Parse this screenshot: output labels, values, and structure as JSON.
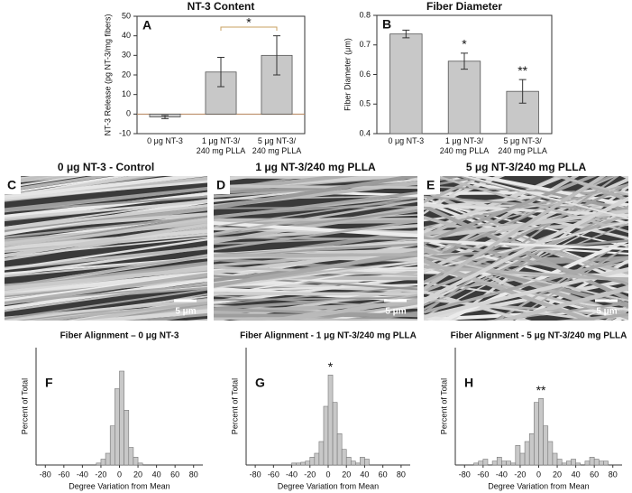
{
  "chart_data": [
    {
      "type": "bar",
      "label": "A",
      "title": "NT-3 Content",
      "y_label": "NT-3 Release (pg NT-3/mg fibers)",
      "categories": [
        "0 μg NT-3",
        "1 μg NT-3/\n240 mg PLLA",
        "5 μg NT-3/\n240 mg PLLA"
      ],
      "values": [
        -1.5,
        21.5,
        30
      ],
      "errors": [
        0.8,
        7.5,
        10
      ],
      "color": "#c8c8c8",
      "ylim": [
        -10,
        50
      ],
      "yticks": [
        -10,
        0,
        10,
        20,
        30,
        40,
        50
      ],
      "annotation": "*"
    },
    {
      "type": "bar",
      "label": "B",
      "title": "Fiber Diameter",
      "y_label": "Fiber Diameter (μm)",
      "categories": [
        "0 μg NT-3",
        "1 μg NT-3/\n240 mg PLLA",
        "5 μg NT-3/\n240 mg PLLA"
      ],
      "values": [
        0.737,
        0.645,
        0.543
      ],
      "errors": [
        0.013,
        0.027,
        0.04
      ],
      "color": "#c8c8c8",
      "ylim": [
        0.4,
        0.8
      ],
      "yticks": [
        0.4,
        0.5,
        0.6,
        0.7,
        0.8
      ],
      "annotations": [
        null,
        "*",
        "**"
      ]
    },
    {
      "type": "histogram",
      "label": "F",
      "title": "Fiber Alignment – 0 μg NT-3",
      "x_label": "Degree Variation from Mean",
      "y_label": "Percent of Total",
      "bins": [
        -90,
        -85,
        -80,
        -75,
        -70,
        -65,
        -60,
        -55,
        -50,
        -45,
        -40,
        -35,
        -30,
        -25,
        -20,
        -15,
        -10,
        -5,
        0,
        5,
        10,
        15,
        20,
        25,
        30,
        35,
        40,
        45,
        50,
        55,
        60,
        65,
        70,
        75,
        80,
        85,
        90
      ],
      "values": [
        0,
        0,
        0,
        0,
        0,
        0,
        0,
        0,
        0,
        0,
        0,
        0,
        0,
        0.5,
        1.5,
        3,
        10,
        19.5,
        24,
        14,
        4.5,
        2,
        0.5,
        0,
        0,
        0,
        0,
        0,
        0,
        0,
        0,
        0,
        0,
        0,
        0,
        0
      ],
      "color": "#c8c8c8",
      "xlim": [
        -90,
        90
      ],
      "xticks": [
        -80,
        -60,
        -40,
        -20,
        0,
        20,
        40,
        60,
        80
      ],
      "ylim": [
        0,
        30
      ]
    },
    {
      "type": "histogram",
      "label": "G",
      "title": "Fiber Alignment  - 1 μg NT-3/240 mg PLLA",
      "x_label": "Degree Variation from Mean",
      "y_label": "Percent of Total",
      "bins": [
        -90,
        -85,
        -80,
        -75,
        -70,
        -65,
        -60,
        -55,
        -50,
        -45,
        -40,
        -35,
        -30,
        -25,
        -20,
        -15,
        -10,
        -5,
        0,
        5,
        10,
        15,
        20,
        25,
        30,
        35,
        40,
        45,
        50,
        55,
        60,
        65,
        70,
        75,
        80,
        85,
        90
      ],
      "values": [
        0,
        0,
        0,
        0,
        0,
        0,
        0,
        0,
        0,
        0,
        0.5,
        0.5,
        0.7,
        1,
        2,
        3,
        6,
        15,
        23,
        16,
        8,
        4,
        2,
        1,
        0.5,
        2,
        1.5,
        0,
        0,
        0,
        0,
        0,
        0,
        0,
        0,
        0
      ],
      "color": "#c8c8c8",
      "xlim": [
        -90,
        90
      ],
      "xticks": [
        -80,
        -60,
        -40,
        -20,
        0,
        20,
        40,
        60,
        80
      ],
      "ylim": [
        0,
        30
      ],
      "annotation": "*"
    },
    {
      "type": "histogram",
      "label": "H",
      "title": "Fiber Alignment  - 5 μg NT-3/240 mg PLLA",
      "x_label": "Degree Variation from Mean",
      "y_label": "Percent of Total",
      "bins": [
        -90,
        -85,
        -80,
        -75,
        -70,
        -65,
        -60,
        -55,
        -50,
        -45,
        -40,
        -35,
        -30,
        -25,
        -20,
        -15,
        -10,
        -5,
        0,
        5,
        10,
        15,
        20,
        25,
        30,
        35,
        40,
        45,
        50,
        55,
        60,
        65,
        70,
        75,
        80,
        85,
        90
      ],
      "values": [
        0,
        0,
        0,
        0,
        0.5,
        1,
        1.5,
        0,
        1,
        2,
        1,
        1,
        0.5,
        5,
        3,
        6,
        8,
        16,
        17,
        10,
        6,
        3,
        1.5,
        0.5,
        1,
        1.5,
        0.5,
        0,
        1,
        2,
        1.5,
        1,
        1,
        0,
        0,
        0
      ],
      "color": "#c8c8c8",
      "xlim": [
        -90,
        90
      ],
      "xticks": [
        -80,
        -60,
        -40,
        -20,
        0,
        20,
        40,
        60,
        80
      ],
      "ylim": [
        0,
        30
      ],
      "annotation": "**"
    }
  ],
  "images": [
    {
      "label": "C",
      "title": "0 μg NT-3 - Control",
      "scale": "5 μm"
    },
    {
      "label": "D",
      "title": "1 μg NT-3/240 mg PLLA",
      "scale": "5 μm"
    },
    {
      "label": "E",
      "title": "5 μg NT-3/240 mg PLLA",
      "scale": "5 μm"
    }
  ]
}
